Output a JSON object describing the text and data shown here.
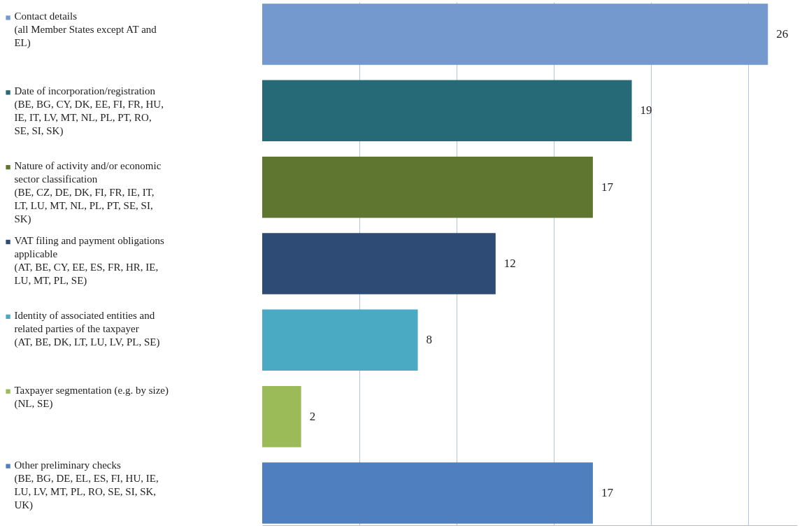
{
  "chart_data": {
    "type": "bar",
    "orientation": "horizontal",
    "categories": [
      "Contact details (all Member States except AT and EL)",
      "Date of incorporation/registration (BE, BG, CY, DK, EE, FI, FR, HU, IE, IT, LV, MT, NL, PL, PT, RO, SE, SI, SK)",
      "Nature of activity and/or economic sector classification (BE, CZ, DE, DK, FI, FR, IE, IT, LT, LU, MT, NL, PL, PT, SE, SI, SK)",
      "VAT filing and payment obligations applicable (AT, BE, CY, EE, ES, FR, HR, IE, LU, MT, PL, SE)",
      "Identity of associated entities and related parties of the taxpayer (AT, BE, DK, LT, LU, LV, PL, SE)",
      "Taxpayer segmentation (e.g. by size) (NL, SE)",
      "Other preliminary checks (BE, BG, DE, EL, ES, FI, HU, IE, LU, LV, MT, PL, RO, SE, SI, SK, UK)"
    ],
    "values": [
      26,
      19,
      17,
      12,
      8,
      2,
      17
    ],
    "colors": [
      "#7399cf",
      "#266977",
      "#5f7630",
      "#2d4b74",
      "#4aaac4",
      "#9bbb59",
      "#4f7fbe"
    ],
    "xlim": [
      0,
      27.5
    ],
    "xticks": [
      {
        "value": 5,
        "label": null
      },
      {
        "value": 10,
        "label": null
      },
      {
        "value": 15,
        "label": null
      },
      {
        "value": 20,
        "label": null
      },
      {
        "value": 25,
        "label": null
      }
    ],
    "grid": "x",
    "data_labels": true
  }
}
